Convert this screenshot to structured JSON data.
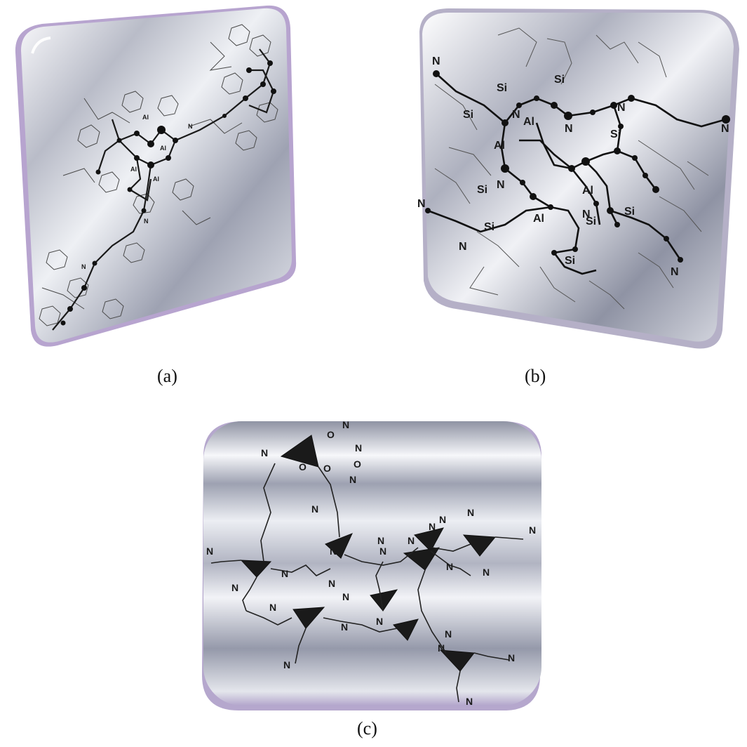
{
  "panels": {
    "a": {
      "caption": "(a)",
      "atom_labels": [
        "Al",
        "Al",
        "Al",
        "Al",
        "N",
        "N",
        "N"
      ]
    },
    "b": {
      "caption": "(b)",
      "atom_labels": [
        "N",
        "Si",
        "Si",
        "Si",
        "N",
        "Al",
        "N",
        "N",
        "Si",
        "Al",
        "Al",
        "Si",
        "N",
        "Al",
        "N",
        "Si",
        "N",
        "Si",
        "N",
        "Si",
        "N",
        "Si",
        "N"
      ]
    },
    "c": {
      "caption": "(c)",
      "atom_labels": [
        "N",
        "O",
        "N",
        "O",
        "O",
        "N",
        "O",
        "N",
        "N",
        "N",
        "N",
        "N",
        "N",
        "N",
        "N",
        "N",
        "N",
        "N",
        "N",
        "N",
        "N",
        "N",
        "N",
        "N",
        "N",
        "N",
        "N",
        "N",
        "N",
        "N",
        "N",
        "N"
      ]
    }
  },
  "colors": {
    "tile_light": "#f4f5f8",
    "tile_mid": "#c3c6d1",
    "tile_dark": "#8f93a3",
    "tile_edge": "#b9a6cf",
    "bond": "#1a1a1a",
    "ligand": "#555555"
  }
}
